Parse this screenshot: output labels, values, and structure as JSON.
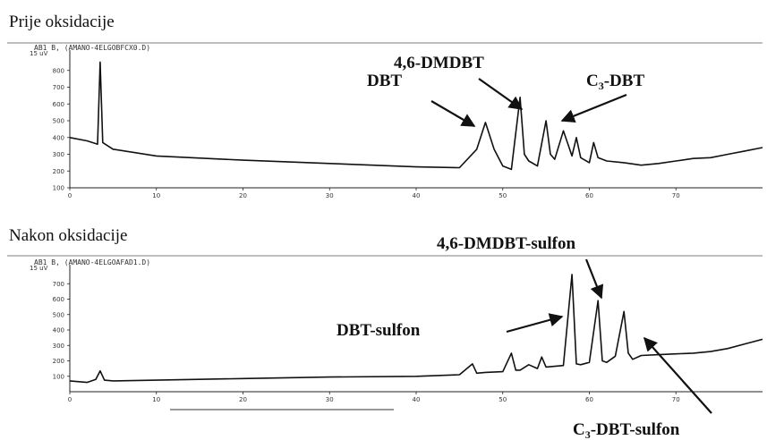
{
  "sections": {
    "top_title": "Prije oksidacije",
    "bottom_title": "Nakon oksidacije"
  },
  "chart_data": [
    {
      "type": "line",
      "title": "Prije oksidacije",
      "header": "AB1 B, (AMANO-4ELGOBFCX0.D)",
      "yunit": "15 uV",
      "ylim": [
        100,
        900
      ],
      "xlim": [
        0,
        80
      ],
      "xticks": [
        0,
        10,
        20,
        30,
        40,
        50,
        60,
        70
      ],
      "yticks": [
        800,
        700,
        600,
        500,
        400,
        300,
        200,
        100
      ],
      "x": [
        0,
        2,
        3.2,
        3.5,
        3.8,
        5,
        10,
        20,
        30,
        40,
        45,
        47,
        48,
        49,
        50,
        51,
        52,
        52.5,
        53,
        54,
        55,
        55.5,
        56,
        57,
        58,
        58.5,
        59,
        60,
        60.5,
        61,
        62,
        64,
        66,
        68,
        70,
        72,
        74,
        76,
        78,
        80
      ],
      "values": [
        400,
        380,
        360,
        850,
        370,
        330,
        290,
        265,
        245,
        225,
        220,
        330,
        490,
        330,
        230,
        210,
        640,
        300,
        260,
        230,
        500,
        300,
        270,
        440,
        290,
        400,
        280,
        250,
        370,
        280,
        260,
        250,
        235,
        245,
        260,
        275,
        280,
        300,
        320,
        340
      ],
      "annotations": [
        {
          "label": "DBT",
          "x": 48
        },
        {
          "label": "4,6-DMDBT",
          "x": 52
        },
        {
          "label": "C",
          "sub": "3",
          "label_after": "-DBT",
          "x": 55
        }
      ]
    },
    {
      "type": "line",
      "title": "Nakon oksidacije",
      "header": "AB1 B, (AMANO-4ELGOAFAD1.D)",
      "yunit": "15 uV",
      "ylim": [
        0,
        800
      ],
      "xlim": [
        0,
        80
      ],
      "xticks": [
        0,
        10,
        20,
        30,
        40,
        50,
        60,
        70
      ],
      "yticks": [
        700,
        600,
        500,
        400,
        300,
        200,
        100
      ],
      "x": [
        0,
        2,
        3,
        3.5,
        4,
        5,
        10,
        20,
        30,
        40,
        45,
        46.5,
        47,
        48,
        50,
        51,
        51.5,
        52,
        53,
        54,
        54.5,
        55,
        57,
        58,
        58.5,
        59,
        60,
        61,
        61.5,
        62,
        63,
        64,
        64.5,
        65,
        66,
        68,
        70,
        72,
        74,
        76,
        78,
        80
      ],
      "values": [
        70,
        60,
        80,
        135,
        75,
        70,
        75,
        85,
        95,
        100,
        110,
        180,
        120,
        125,
        130,
        250,
        140,
        140,
        175,
        150,
        225,
        160,
        170,
        760,
        180,
        175,
        190,
        590,
        200,
        190,
        230,
        520,
        250,
        210,
        235,
        240,
        245,
        250,
        260,
        280,
        310,
        340
      ],
      "annotations": [
        {
          "label": "DBT-sulfon",
          "x": 58
        },
        {
          "label": "4,6-DMDBT-sulfon",
          "x": 61
        },
        {
          "label": "C",
          "sub": "3",
          "label_after": "-DBT-sulfon",
          "x": 64.5
        }
      ]
    }
  ]
}
